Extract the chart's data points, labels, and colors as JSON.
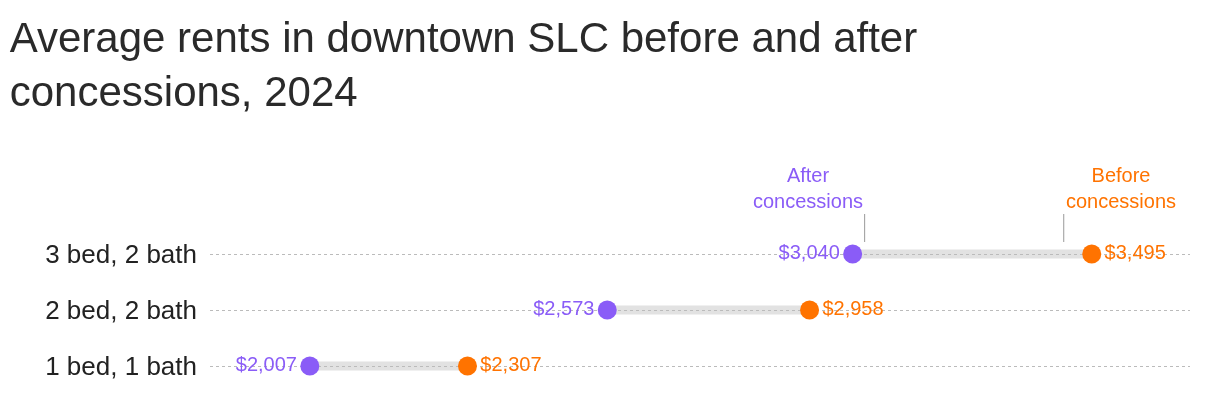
{
  "chart_data": {
    "type": "scatter",
    "title": "Average rents in downtown SLC before and after\nconcessions, 2024",
    "orientation": "horizontal",
    "categories": [
      "3 bed, 2 bath",
      "2 bed, 2 bath",
      "1 bed, 1 bath"
    ],
    "xlim": [
      1817,
      3682
    ],
    "grid": "y",
    "tick_labels": "y",
    "marker": "circle",
    "series": [
      {
        "name": "After\nconcessions",
        "color": "#8a5cf7",
        "values": [
          3040,
          2573,
          2007
        ],
        "value_labels": [
          "$3,040",
          "$2,573",
          "$2,007"
        ]
      },
      {
        "name": "Before\nconcessions",
        "color": "#ff7300",
        "values": [
          3495,
          2958,
          2307
        ],
        "value_labels": [
          "$3,495",
          "$2,958",
          "$2,307"
        ]
      }
    ]
  }
}
